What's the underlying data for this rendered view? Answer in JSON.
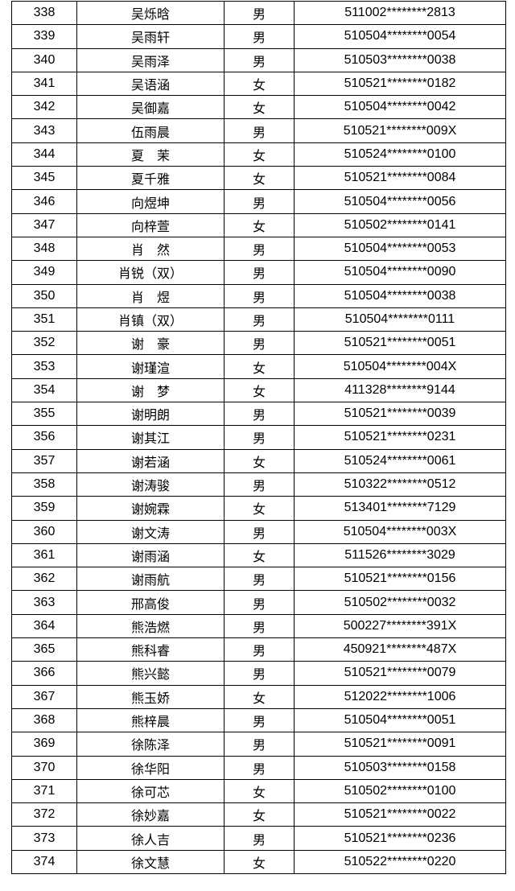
{
  "table": {
    "rows": [
      [
        "338",
        "吴烁晗",
        "男",
        "511002********2813"
      ],
      [
        "339",
        "吴雨轩",
        "男",
        "510504********0054"
      ],
      [
        "340",
        "吴雨泽",
        "男",
        "510503********0038"
      ],
      [
        "341",
        "吴语涵",
        "女",
        "510521********0182"
      ],
      [
        "342",
        "吴御嘉",
        "女",
        "510504********0042"
      ],
      [
        "343",
        "伍雨晨",
        "男",
        "510521********009X"
      ],
      [
        "344",
        "夏　茉",
        "女",
        "510524********0100"
      ],
      [
        "345",
        "夏千雅",
        "女",
        "510521********0084"
      ],
      [
        "346",
        "向煜坤",
        "男",
        "510504********0056"
      ],
      [
        "347",
        "向梓萱",
        "女",
        "510502********0141"
      ],
      [
        "348",
        "肖　然",
        "男",
        "510504********0053"
      ],
      [
        "349",
        "肖锐（双）",
        "男",
        "510504********0090"
      ],
      [
        "350",
        "肖　煜",
        "男",
        "510504********0038"
      ],
      [
        "351",
        "肖镇（双）",
        "男",
        "510504********0111"
      ],
      [
        "352",
        "谢　豪",
        "男",
        "510521********0051"
      ],
      [
        "353",
        "谢瑾渲",
        "女",
        "510504********004X"
      ],
      [
        "354",
        "谢　梦",
        "女",
        "411328********9144"
      ],
      [
        "355",
        "谢明朗",
        "男",
        "510521********0039"
      ],
      [
        "356",
        "谢其江",
        "男",
        "510521********0231"
      ],
      [
        "357",
        "谢若涵",
        "女",
        "510524********0061"
      ],
      [
        "358",
        "谢涛骏",
        "男",
        "510322********0512"
      ],
      [
        "359",
        "谢婉霖",
        "女",
        "513401********7129"
      ],
      [
        "360",
        "谢文涛",
        "男",
        "510504********003X"
      ],
      [
        "361",
        "谢雨涵",
        "女",
        "511526********3029"
      ],
      [
        "362",
        "谢雨航",
        "男",
        "510521********0156"
      ],
      [
        "363",
        "邢高俊",
        "男",
        "510502********0032"
      ],
      [
        "364",
        "熊浩燃",
        "男",
        "500227********391X"
      ],
      [
        "365",
        "熊科睿",
        "男",
        "450921********487X"
      ],
      [
        "366",
        "熊兴懿",
        "男",
        "510521********0079"
      ],
      [
        "367",
        "熊玉娇",
        "女",
        "512022********1006"
      ],
      [
        "368",
        "熊梓晨",
        "男",
        "510504********0051"
      ],
      [
        "369",
        "徐陈泽",
        "男",
        "510521********0091"
      ],
      [
        "370",
        "徐华阳",
        "男",
        "510503********0158"
      ],
      [
        "371",
        "徐可芯",
        "女",
        "510502********0100"
      ],
      [
        "372",
        "徐妙嘉",
        "女",
        "510521********0022"
      ],
      [
        "373",
        "徐人吉",
        "男",
        "510521********0236"
      ],
      [
        "374",
        "徐文慧",
        "女",
        "510522********0220"
      ]
    ]
  }
}
